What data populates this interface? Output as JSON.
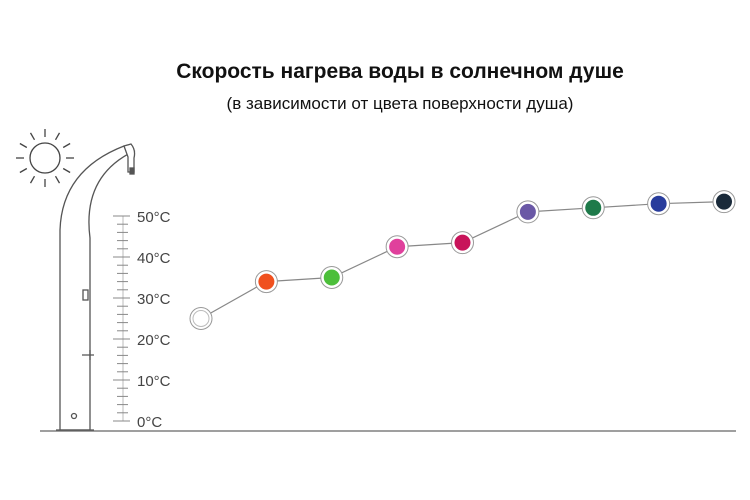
{
  "chart_data": {
    "type": "line",
    "title": "Скорость нагрева воды в солнечном душе",
    "subtitle": "(в зависимости от цвета поверхности душа)",
    "y_ticks": [
      "0°C",
      "10°C",
      "20°C",
      "30°C",
      "40°C",
      "50°C"
    ],
    "ylim": [
      0,
      50
    ],
    "series": [
      {
        "values": [
          25,
          34,
          35,
          42.5,
          43.5,
          51,
          52,
          53,
          53.5
        ],
        "colors": [
          "#ffffff",
          "#f0501e",
          "#4cbf3a",
          "#e0409c",
          "#c8145a",
          "#6a58a6",
          "#1e7a4a",
          "#283c9c",
          "#1a2a3a"
        ]
      }
    ],
    "grid": false,
    "legend": "none"
  },
  "icons": {
    "sun": "sun-icon",
    "shower": "solar-shower-icon"
  }
}
